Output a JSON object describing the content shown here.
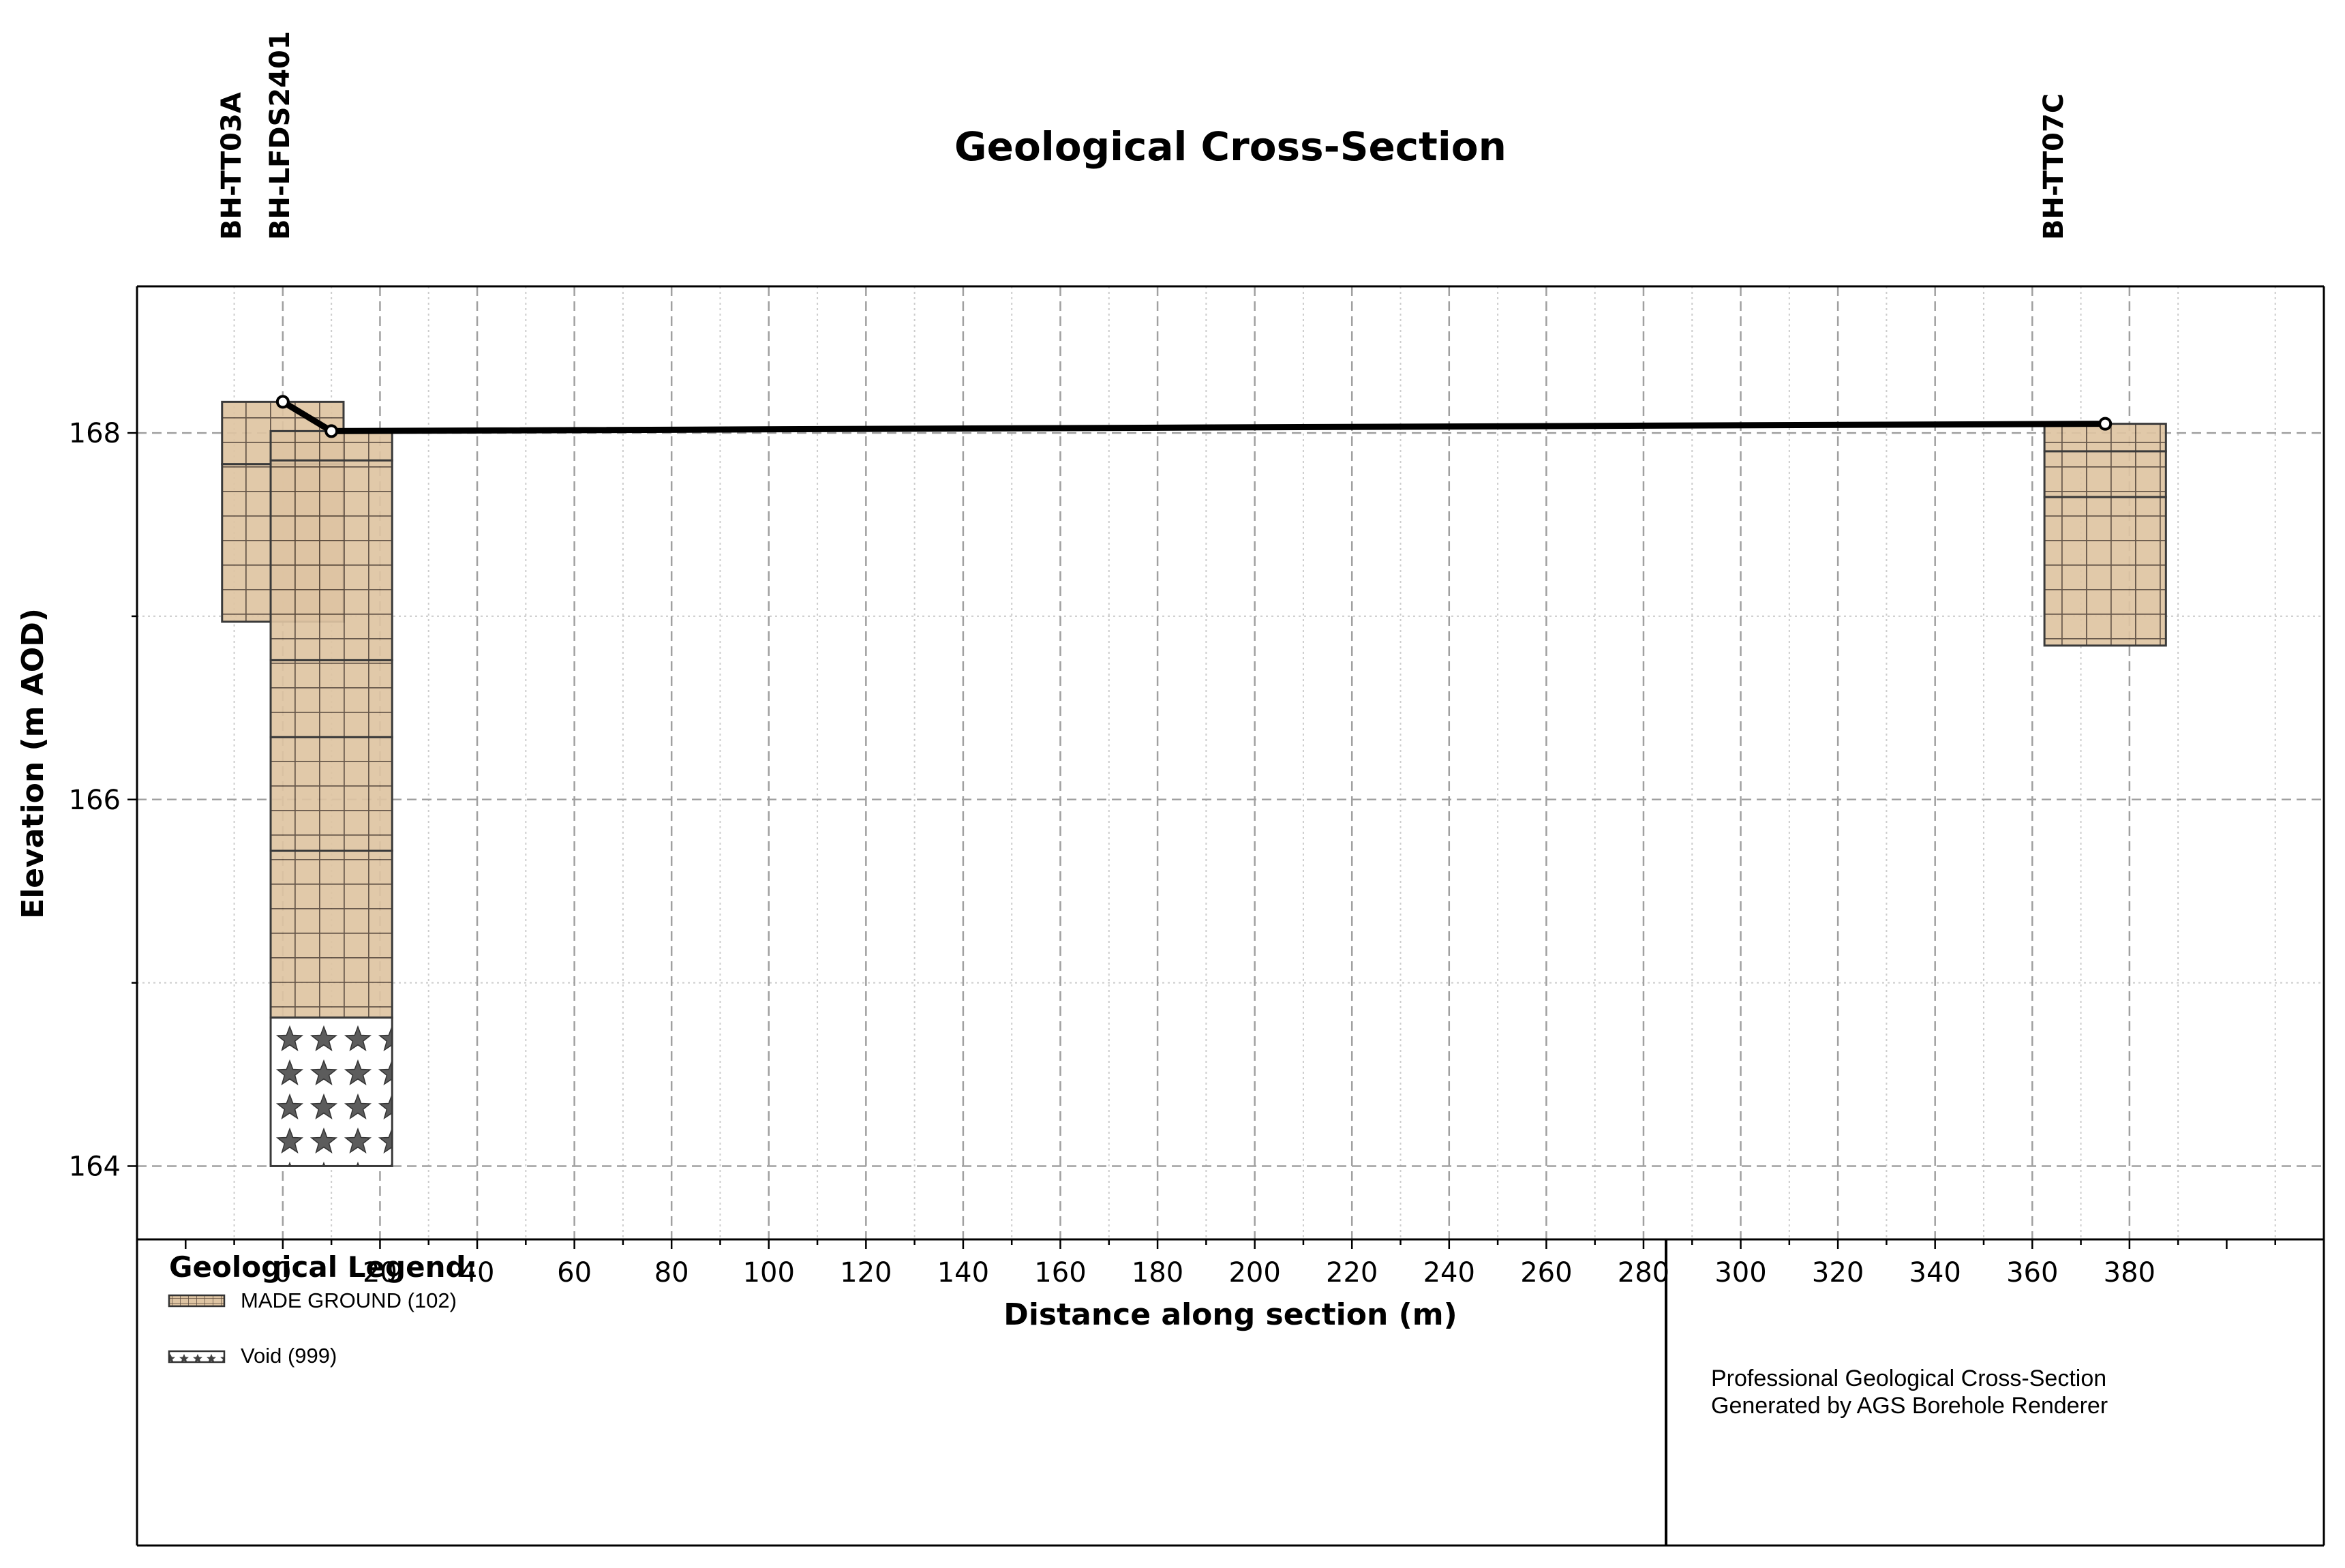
{
  "chart_data": {
    "type": "cross-section",
    "title": "Geological Cross-Section",
    "xlabel": "Distance along section (m)",
    "ylabel": "Elevation (m AOD)",
    "xlim": [
      -30,
      420
    ],
    "ylim": [
      163.6,
      168.8
    ],
    "x_ticks": [
      0,
      20,
      40,
      60,
      80,
      100,
      120,
      140,
      160,
      180,
      200,
      220,
      240,
      260,
      280,
      300,
      320,
      340,
      360,
      380
    ],
    "y_ticks": [
      164,
      166,
      168
    ],
    "grid": true,
    "colors": {
      "made_ground": "#dec4a2",
      "void": "#ffffff",
      "ground_line": "#000000",
      "grid": "#a0a0a0"
    },
    "boreholes": [
      {
        "name": "BH-TT03A",
        "x_left": -12.5,
        "x_right": 12.5,
        "ground_x": 0,
        "ground_elev": 168.17,
        "layers": [
          {
            "code": "102",
            "top": 168.17,
            "base": 167.83,
            "pattern": "grid"
          },
          {
            "code": "102",
            "top": 167.83,
            "base": 166.97,
            "pattern": "grid"
          }
        ]
      },
      {
        "name": "BH-LFDS2401",
        "x_left": -2.5,
        "x_right": 22.5,
        "ground_x": 10,
        "ground_elev": 168.01,
        "layers": [
          {
            "code": "102",
            "top": 168.01,
            "base": 167.85,
            "pattern": "grid"
          },
          {
            "code": "102",
            "top": 167.85,
            "base": 166.76,
            "pattern": "grid"
          },
          {
            "code": "102",
            "top": 166.76,
            "base": 166.34,
            "pattern": "grid"
          },
          {
            "code": "102",
            "top": 166.34,
            "base": 165.72,
            "pattern": "grid"
          },
          {
            "code": "102",
            "top": 165.72,
            "base": 164.81,
            "pattern": "grid"
          },
          {
            "code": "999",
            "top": 164.81,
            "base": 164.0,
            "pattern": "stars"
          }
        ]
      },
      {
        "name": "BH-TT07C",
        "x_left": 362.5,
        "x_right": 387.5,
        "ground_x": 375,
        "ground_elev": 168.05,
        "layers": [
          {
            "code": "102",
            "top": 168.05,
            "base": 167.9,
            "pattern": "grid"
          },
          {
            "code": "102",
            "top": 167.9,
            "base": 167.65,
            "pattern": "grid"
          },
          {
            "code": "102",
            "top": 167.65,
            "base": 166.84,
            "pattern": "grid"
          }
        ]
      }
    ],
    "ground_line": {
      "x": [
        0,
        10,
        375
      ],
      "y": [
        168.17,
        168.01,
        168.05
      ]
    },
    "legend": {
      "title": "Geological Legend:",
      "entries": [
        {
          "label": "MADE GROUND (102)",
          "pattern": "grid"
        },
        {
          "label": "Void (999)",
          "pattern": "stars"
        }
      ]
    },
    "footer_note": {
      "line1": "Professional Geological Cross-Section",
      "line2": "Generated by AGS Borehole Renderer"
    }
  }
}
